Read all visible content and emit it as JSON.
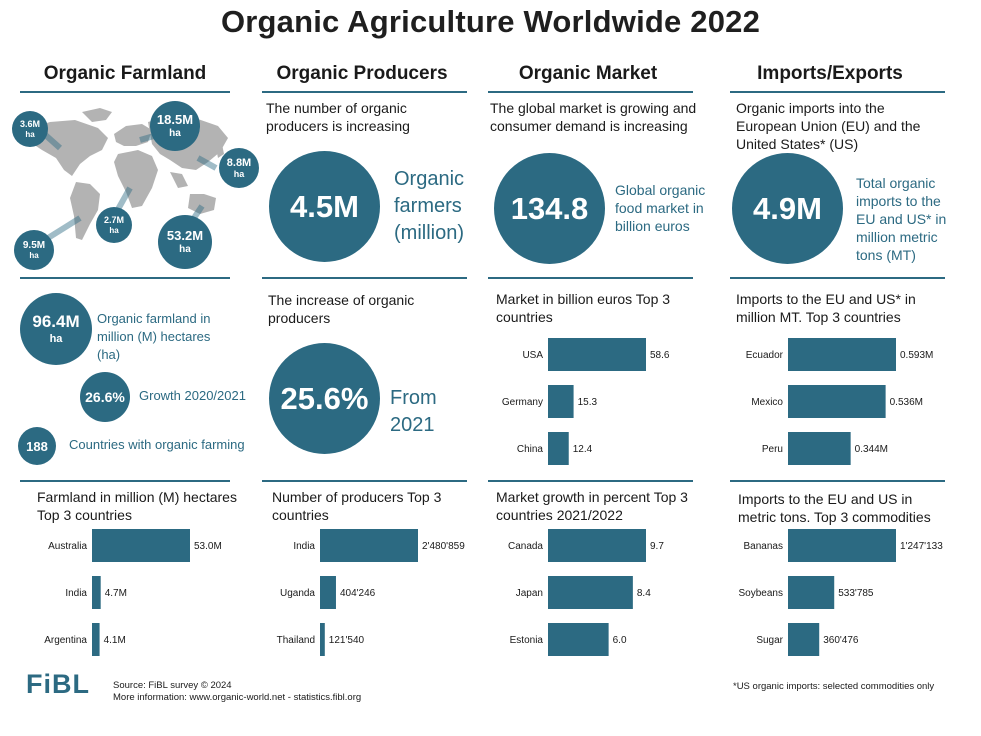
{
  "title": "Organic Agriculture Worldwide 2022",
  "colors": {
    "accent": "#2c6a82",
    "map": "#b3b3b3"
  },
  "columns": {
    "farmland": {
      "heading": "Organic Farmland",
      "map_labels": [
        {
          "value": "3.6M",
          "unit": "ha"
        },
        {
          "value": "18.5M",
          "unit": "ha"
        },
        {
          "value": "8.8M",
          "unit": "ha"
        },
        {
          "value": "2.7M",
          "unit": "ha"
        },
        {
          "value": "53.2M",
          "unit": "ha"
        },
        {
          "value": "9.5M",
          "unit": "ha"
        }
      ],
      "stat1": {
        "value": "96.4M",
        "unit": "ha",
        "caption": "Organic farmland in million (M) hectares (ha)"
      },
      "stat2": {
        "value": "26.6%",
        "caption": "Growth 2020/2021"
      },
      "stat3": {
        "value": "188",
        "caption": "Countries with organic farming"
      }
    },
    "producers": {
      "heading": "Organic Producers",
      "intro": "The number of organic producers is increasing",
      "big_value": "4.5M",
      "big_caption": "Organic farmers (million)",
      "increase_intro": "The increase of organic producers",
      "increase_value": "25.6%",
      "increase_caption": "From 2021"
    },
    "market": {
      "heading": "Organic Market",
      "intro": "The global market is growing and consumer demand is increasing",
      "big_value": "134.8",
      "big_caption": "Global organic food market in billion euros"
    },
    "trade": {
      "heading": "Imports/Exports",
      "intro": "Organic imports into the European Union (EU) and the United States* (US)",
      "big_value": "4.9M",
      "big_caption": "Total organic imports to the EU and US* in million metric tons (MT)"
    }
  },
  "chart_data": [
    {
      "type": "bar",
      "title": "Farmland in million (M) hectares Top 3 countries",
      "categories": [
        "Australia",
        "India",
        "Argentina"
      ],
      "values": [
        53.0,
        4.7,
        4.1
      ],
      "labels": [
        "53.0M",
        "4.7M",
        "4.1M"
      ],
      "max": 53.0
    },
    {
      "type": "bar",
      "title": "Number of producers Top 3 countries",
      "categories": [
        "India",
        "Uganda",
        "Thailand"
      ],
      "values": [
        2480859,
        404246,
        121540
      ],
      "labels": [
        "2'480'859",
        "404'246",
        "121'540"
      ],
      "max": 2480859
    },
    {
      "type": "bar",
      "title": "Market in billion euros Top 3 countries",
      "categories": [
        "USA",
        "Germany",
        "China"
      ],
      "values": [
        58.6,
        15.3,
        12.4
      ],
      "labels": [
        "58.6",
        "15.3",
        "12.4"
      ],
      "max": 58.6
    },
    {
      "type": "bar",
      "title": "Market growth in percent Top 3 countries 2021/2022",
      "categories": [
        "Canada",
        "Japan",
        "Estonia"
      ],
      "values": [
        9.7,
        8.4,
        6.0
      ],
      "labels": [
        "9.7",
        "8.4",
        "6.0"
      ],
      "max": 9.7
    },
    {
      "type": "bar",
      "title": "Imports to the EU and US* in million MT. Top 3 countries",
      "categories": [
        "Ecuador",
        "Mexico",
        "Peru"
      ],
      "values": [
        0.593,
        0.536,
        0.344
      ],
      "labels": [
        "0.593M",
        "0.536M",
        "0.344M"
      ],
      "max": 0.593
    },
    {
      "type": "bar",
      "title": "Imports to the EU and US in metric tons. Top 3 commodities",
      "categories": [
        "Bananas",
        "Soybeans",
        "Sugar"
      ],
      "values": [
        1247133,
        533785,
        360476
      ],
      "labels": [
        "1'247'133",
        "533'785",
        "360'476"
      ],
      "max": 1247133
    }
  ],
  "footer": {
    "logo": "FiBL",
    "source": "Source: FiBL survey © 2024",
    "more": "More information: www.organic-world.net - statistics.fibl.org",
    "note": "*US organic imports: selected commodities only"
  }
}
